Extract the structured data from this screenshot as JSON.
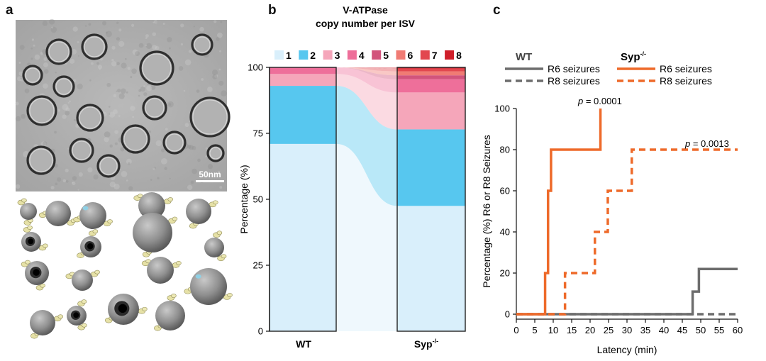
{
  "panel_labels": {
    "a": "a",
    "b": "b",
    "c": "c"
  },
  "panel_a": {
    "scale_bar_label": "50nm"
  },
  "panel_b": {
    "title_line1": "V-ATPase",
    "title_line2": "copy number per ISV",
    "ylabel": "Percentage (%)",
    "legend": [
      {
        "label": "1",
        "color": "#d9effb"
      },
      {
        "label": "2",
        "color": "#57c7ef"
      },
      {
        "label": "3",
        "color": "#f5a6ba"
      },
      {
        "label": "4",
        "color": "#ee6f9a"
      },
      {
        "label": "5",
        "color": "#d2547c"
      },
      {
        "label": "6",
        "color": "#f07b74"
      },
      {
        "label": "7",
        "color": "#e2474f"
      },
      {
        "label": "8",
        "color": "#cf1f2a"
      }
    ],
    "wt_label": "WT",
    "syp_label": "Syp",
    "syp_sup": "-/-"
  },
  "panel_c": {
    "legend_wt": "WT",
    "legend_syp": "Syp",
    "legend_syp_sup": "-/-",
    "r6": "R6 seizures",
    "r8": "R8 seizures",
    "p_label": "p",
    "p1": " = 0.0001",
    "p2": " = 0.0013",
    "xlabel": "Latency (min)",
    "ylabel": "Percentage (%) R6 or R8 Seizures"
  },
  "chart_data": [
    {
      "type": "bar",
      "subtype": "stacked-100-percent",
      "title": "V-ATPase copy number per ISV",
      "categories": [
        "WT",
        "Syp-/-"
      ],
      "ylabel": "Percentage (%)",
      "ylim": [
        0,
        100
      ],
      "yticks": [
        0,
        25,
        50,
        75,
        100
      ],
      "series": [
        {
          "name": "1",
          "values": [
            71,
            47.5
          ]
        },
        {
          "name": "2",
          "values": [
            22,
            29
          ]
        },
        {
          "name": "3",
          "values": [
            4.5,
            14
          ]
        },
        {
          "name": "4",
          "values": [
            2.5,
            5
          ]
        },
        {
          "name": "5",
          "values": [
            0,
            1.5
          ]
        },
        {
          "name": "6",
          "values": [
            0,
            1.5
          ]
        },
        {
          "name": "7",
          "values": [
            0,
            1
          ]
        },
        {
          "name": "8",
          "values": [
            0,
            0.5
          ]
        }
      ]
    },
    {
      "type": "line",
      "subtype": "step",
      "xlabel": "Latency (min)",
      "ylabel": "Percentage (%) R6 or R8 Seizures",
      "xlim": [
        0,
        60
      ],
      "ylim": [
        0,
        100
      ],
      "xticks": [
        0,
        5,
        10,
        15,
        20,
        25,
        30,
        35,
        40,
        45,
        50,
        55,
        60
      ],
      "yticks": [
        0,
        20,
        40,
        60,
        80,
        100
      ],
      "series": [
        {
          "name": "WT R6 seizures",
          "color": "#6d6d6d",
          "dash": false,
          "x": [
            0,
            47.8,
            47.8,
            49.5,
            49.5,
            60
          ],
          "y": [
            0,
            0,
            11,
            11,
            22,
            22
          ]
        },
        {
          "name": "WT R8 seizures",
          "color": "#6d6d6d",
          "dash": true,
          "x": [
            0,
            60
          ],
          "y": [
            0,
            0
          ]
        },
        {
          "name": "Syp-/- R6 seizures",
          "color": "#ee6a2a",
          "dash": false,
          "x": [
            0,
            7.8,
            7.8,
            8.6,
            8.6,
            9.4,
            9.4,
            22.8,
            22.8
          ],
          "y": [
            0,
            0,
            20,
            20,
            60,
            60,
            80,
            80,
            100
          ]
        },
        {
          "name": "Syp-/- R8 seizures",
          "color": "#ee6a2a",
          "dash": true,
          "x": [
            0,
            13.2,
            13.2,
            21.3,
            21.3,
            24.8,
            24.8,
            31.3,
            31.3,
            60
          ],
          "y": [
            0,
            0,
            20,
            20,
            40,
            40,
            60,
            60,
            80,
            80
          ]
        }
      ],
      "annotations": [
        {
          "text": "p = 0.0001"
        },
        {
          "text": "p = 0.0013"
        }
      ]
    }
  ]
}
